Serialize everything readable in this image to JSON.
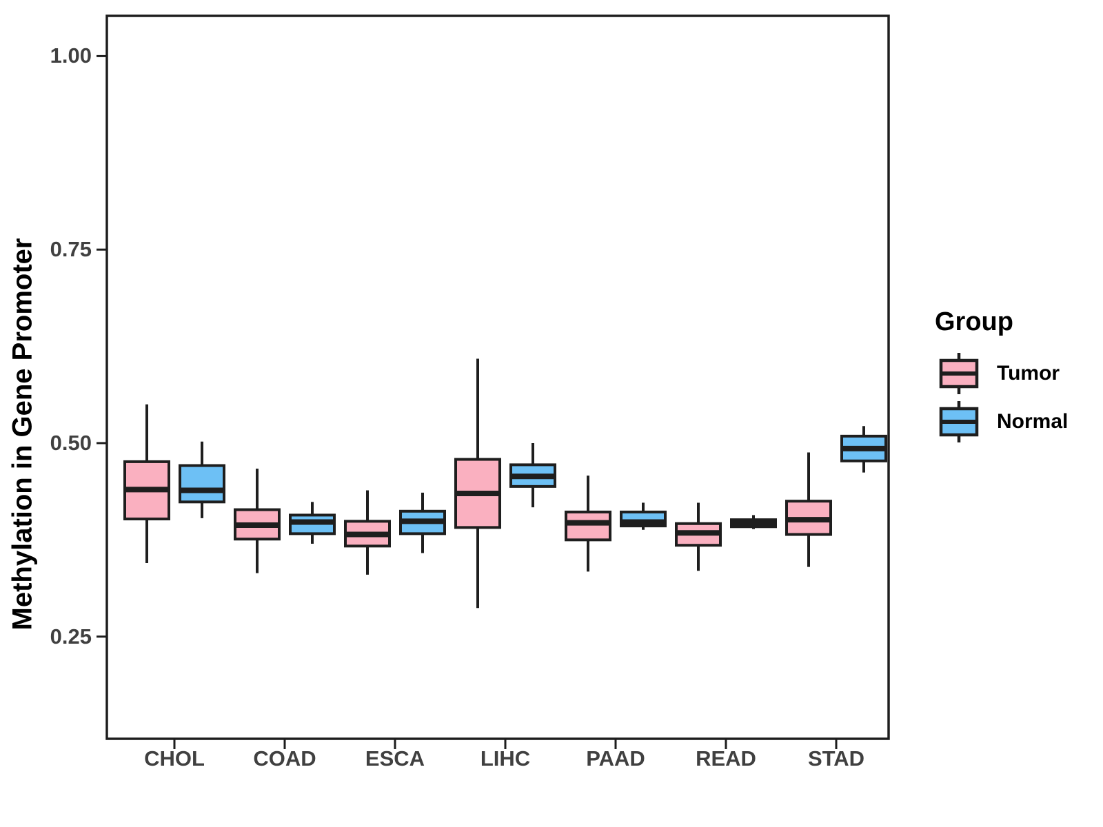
{
  "figure": {
    "y_axis": {
      "tick_labels": [
        "1.00",
        "0.75",
        "0.50",
        "0.25"
      ]
    }
  },
  "legend": {
    "title": "Group",
    "items": [
      {
        "label": "Tumor",
        "color": "#FAB0C0"
      },
      {
        "label": "Normal",
        "color": "#6DC0F5"
      }
    ]
  },
  "chart_data": {
    "type": "boxplot",
    "title": "",
    "xlabel": "",
    "ylabel": "Methylation in Gene Promoter",
    "categories": [
      "CHOL",
      "COAD",
      "ESCA",
      "LIHC",
      "PAAD",
      "READ",
      "STAD"
    ],
    "groups": [
      "Tumor",
      "Normal"
    ],
    "ylim": [
      0.118,
      1.052
    ],
    "yticks": [
      1.0,
      0.75,
      0.5,
      0.25
    ],
    "grid": false,
    "legend_position": "right",
    "ink_color": "#1e1e1e",
    "series": [
      {
        "name": "Tumor",
        "color": "#FAB0C0",
        "boxes": [
          {
            "category": "CHOL",
            "low": 0.345,
            "q1": 0.402,
            "median": 0.44,
            "q3": 0.476,
            "high": 0.55
          },
          {
            "category": "COAD",
            "low": 0.332,
            "q1": 0.376,
            "median": 0.394,
            "q3": 0.414,
            "high": 0.467
          },
          {
            "category": "ESCA",
            "low": 0.33,
            "q1": 0.367,
            "median": 0.382,
            "q3": 0.399,
            "high": 0.439
          },
          {
            "category": "LIHC",
            "low": 0.287,
            "q1": 0.391,
            "median": 0.435,
            "q3": 0.479,
            "high": 0.609
          },
          {
            "category": "PAAD",
            "low": 0.334,
            "q1": 0.375,
            "median": 0.397,
            "q3": 0.411,
            "high": 0.458
          },
          {
            "category": "READ",
            "low": 0.335,
            "q1": 0.368,
            "median": 0.384,
            "q3": 0.396,
            "high": 0.423
          },
          {
            "category": "STAD",
            "low": 0.34,
            "q1": 0.382,
            "median": 0.401,
            "q3": 0.425,
            "high": 0.488
          }
        ]
      },
      {
        "name": "Normal",
        "color": "#6DC0F5",
        "boxes": [
          {
            "category": "CHOL",
            "low": 0.403,
            "q1": 0.424,
            "median": 0.439,
            "q3": 0.471,
            "high": 0.502
          },
          {
            "category": "COAD",
            "low": 0.37,
            "q1": 0.383,
            "median": 0.398,
            "q3": 0.407,
            "high": 0.424
          },
          {
            "category": "ESCA",
            "low": 0.358,
            "q1": 0.383,
            "median": 0.399,
            "q3": 0.412,
            "high": 0.436
          },
          {
            "category": "LIHC",
            "low": 0.417,
            "q1": 0.444,
            "median": 0.457,
            "q3": 0.472,
            "high": 0.5
          },
          {
            "category": "PAAD",
            "low": 0.388,
            "q1": 0.393,
            "median": 0.398,
            "q3": 0.411,
            "high": 0.423
          },
          {
            "category": "READ",
            "low": 0.389,
            "q1": 0.392,
            "median": 0.397,
            "q3": 0.401,
            "high": 0.407
          },
          {
            "category": "STAD",
            "low": 0.462,
            "q1": 0.477,
            "median": 0.493,
            "q3": 0.509,
            "high": 0.522
          }
        ]
      }
    ]
  }
}
